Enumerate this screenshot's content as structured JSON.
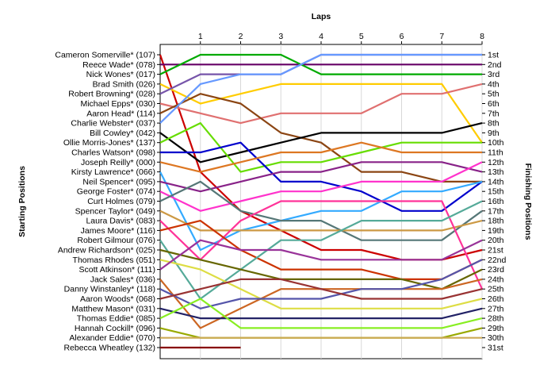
{
  "chart_data": {
    "type": "line",
    "title": "Laps",
    "xlabel": "Laps",
    "ylabel_left": "Starting Positions",
    "ylabel_right": "Finishing Positions",
    "x": [
      1,
      2,
      3,
      4,
      5,
      6,
      7,
      8
    ],
    "xlim": [
      0,
      8
    ],
    "ylim": [
      1,
      31
    ],
    "y_reversed": true,
    "grid": true,
    "legend": "none",
    "starting_labels": [
      "Cameron Somerville* (107)",
      "Reece Wade* (078)",
      "Nick Wones* (017)",
      "Brad Smith (026)",
      "Robert Browning* (028)",
      "Michael Epps* (030)",
      "Aaron Head* (114)",
      "Charlie Webster* (037)",
      "Bill Cowley* (042)",
      "Ollie Morris-Jones* (137)",
      "Charles Watson* (098)",
      "Joseph Reilly* (000)",
      "Kirsty Lawrence* (066)",
      "Neil Spencer* (095)",
      "George Foster* (074)",
      "Curt Holmes (079)",
      "Spencer Taylor* (049)",
      "Laura Davis* (083)",
      "James Moore* (116)",
      "Robert Gilmour (076)",
      "Andrew Richardson* (025)",
      "Thomas Rhodes (051)",
      "Scott Atkinson* (111)",
      "Jack Sales* (036)",
      "Danny Winstanley* (118)",
      "Aaron Woods* (068)",
      "Matthew Mason* (031)",
      "Thomas Eddie* (085)",
      "Hannah Cockill* (096)",
      "Alexander Eddie* (070)",
      "Rebecca Wheatley (132)"
    ],
    "finishing_labels": [
      "1st",
      "2nd",
      "3rd",
      "4th",
      "5th",
      "6th",
      "7th",
      "8th",
      "9th",
      "10th",
      "11th",
      "12th",
      "13th",
      "14th",
      "15th",
      "16th",
      "17th",
      "18th",
      "19th",
      "20th",
      "21st",
      "22nd",
      "23rd",
      "24th",
      "25th",
      "26th",
      "27th",
      "28th",
      "29th",
      "30th",
      "31st"
    ],
    "series": [
      {
        "start": 1,
        "color": "#cc0000",
        "positions": [
          13,
          17,
          19,
          21,
          21,
          22,
          22,
          21
        ]
      },
      {
        "start": 2,
        "color": "#660066",
        "positions": [
          2,
          2,
          2,
          2,
          2,
          2,
          2,
          2
        ]
      },
      {
        "start": 3,
        "color": "#00aa00",
        "positions": [
          1,
          1,
          1,
          3,
          3,
          3,
          3,
          3
        ]
      },
      {
        "start": 4,
        "color": "#ffcc00",
        "positions": [
          6,
          5,
          4,
          4,
          4,
          4,
          4,
          10
        ]
      },
      {
        "start": 5,
        "color": "#7755aa",
        "positions": [
          3,
          3,
          3,
          1,
          1,
          1,
          1,
          1
        ]
      },
      {
        "start": 6,
        "color": "#e07070",
        "positions": [
          7,
          8,
          7,
          7,
          7,
          5,
          5,
          4
        ]
      },
      {
        "start": 7,
        "color": "#8b4513",
        "positions": [
          5,
          6,
          9,
          10,
          13,
          13,
          14,
          14
        ]
      },
      {
        "start": 8,
        "color": "#6699ff",
        "positions": [
          4,
          3,
          3,
          1,
          1,
          1,
          1,
          1
        ]
      },
      {
        "start": 9,
        "color": "#000000",
        "positions": [
          12,
          11,
          10,
          9,
          9,
          9,
          9,
          8
        ]
      },
      {
        "start": 10,
        "color": "#66dd00",
        "positions": [
          8,
          13,
          12,
          12,
          11,
          10,
          10,
          10
        ]
      },
      {
        "start": 11,
        "color": "#0000cc",
        "positions": [
          11,
          10,
          14,
          14,
          15,
          17,
          17,
          14
        ]
      },
      {
        "start": 12,
        "color": "#dd7722",
        "positions": [
          13,
          12,
          11,
          11,
          10,
          11,
          11,
          11
        ]
      },
      {
        "start": 13,
        "color": "#33aaff",
        "positions": [
          21,
          19,
          18,
          17,
          17,
          15,
          15,
          14
        ]
      },
      {
        "start": 14,
        "color": "#882288",
        "positions": [
          15,
          14,
          13,
          13,
          12,
          12,
          12,
          13
        ]
      },
      {
        "start": 15,
        "color": "#ff33cc",
        "positions": [
          17,
          16,
          15,
          15,
          14,
          14,
          14,
          12
        ]
      },
      {
        "start": 16,
        "color": "#557777",
        "positions": [
          14,
          17,
          18,
          18,
          20,
          20,
          20,
          17
        ]
      },
      {
        "start": 17,
        "color": "#cc9944",
        "positions": [
          19,
          19,
          19,
          19,
          19,
          19,
          19,
          18
        ]
      },
      {
        "start": 18,
        "color": "#ff3399",
        "positions": [
          22,
          18,
          16,
          16,
          16,
          16,
          16,
          25
        ]
      },
      {
        "start": 19,
        "color": "#cc3300",
        "positions": [
          18,
          21,
          23,
          23,
          23,
          24,
          24,
          22
        ]
      },
      {
        "start": 20,
        "color": "#55aa99",
        "positions": [
          26,
          23,
          20,
          20,
          18,
          18,
          18,
          16
        ]
      },
      {
        "start": 21,
        "color": "#666600",
        "positions": [
          22,
          23,
          24,
          24,
          24,
          24,
          25,
          23
        ]
      },
      {
        "start": 22,
        "color": "#dddd44",
        "positions": [
          23,
          25,
          27,
          27,
          27,
          27,
          27,
          26
        ]
      },
      {
        "start": 23,
        "color": "#993399",
        "positions": [
          20,
          21,
          21,
          22,
          22,
          22,
          22,
          20
        ]
      },
      {
        "start": 24,
        "color": "#cc6622",
        "positions": [
          29,
          27,
          25,
          25,
          25,
          25,
          25,
          24
        ]
      },
      {
        "start": 25,
        "color": "#5555aa",
        "positions": [
          27,
          26,
          26,
          26,
          25,
          25,
          24,
          22
        ]
      },
      {
        "start": 26,
        "color": "#993333",
        "positions": [
          25,
          24,
          24,
          25,
          26,
          26,
          26,
          25
        ]
      },
      {
        "start": 27,
        "color": "#222266",
        "positions": [
          28,
          28,
          28,
          28,
          28,
          28,
          28,
          27
        ]
      },
      {
        "start": 28,
        "color": "#88ee22",
        "positions": [
          26,
          29,
          29,
          29,
          29,
          29,
          29,
          28
        ]
      },
      {
        "start": 29,
        "color": "#99aa00",
        "positions": [
          30,
          30,
          30,
          30,
          30,
          30,
          30,
          29
        ]
      },
      {
        "start": 30,
        "color": "#ccaa55",
        "positions": [
          30,
          30,
          30,
          30,
          30,
          30,
          30,
          30
        ]
      },
      {
        "start": 31,
        "color": "#880000",
        "positions": [
          31,
          31
        ]
      }
    ]
  }
}
